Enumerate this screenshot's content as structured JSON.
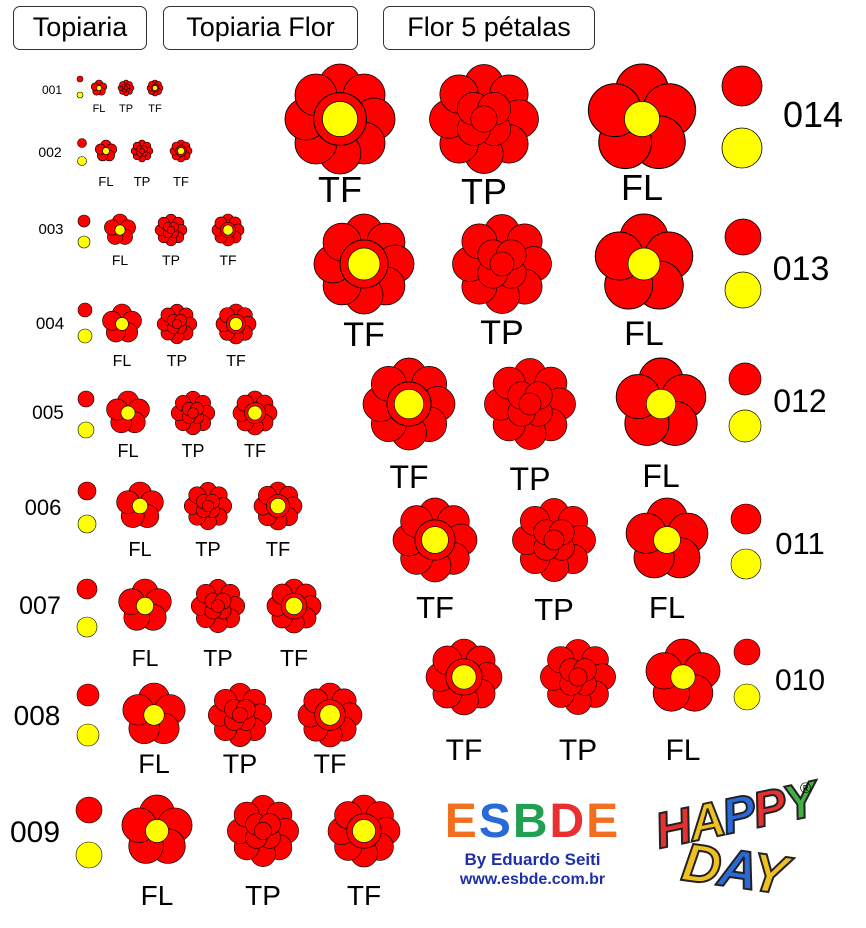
{
  "tabs": [
    "Topiaria",
    "Topiaria Flor",
    "Flor 5 pétalas"
  ],
  "size_ids": [
    "001",
    "002",
    "003",
    "004",
    "005",
    "006",
    "007",
    "008",
    "009",
    "010",
    "011",
    "012",
    "013",
    "014"
  ],
  "type_labels": {
    "tf": "TF",
    "tp": "TP",
    "fl": "FL"
  },
  "colors": {
    "petal": "#ff0000",
    "center": "#ffff00",
    "outline": "#000000"
  },
  "brand": {
    "name_letters": [
      "E",
      "S",
      "B",
      "D",
      "E"
    ],
    "name_colors": [
      "#f07020",
      "#2a6ad8",
      "#20a050",
      "#e83030",
      "#f07020"
    ],
    "byline": "By Eduardo Seiti",
    "url": "www.esbde.com.br"
  },
  "logo": {
    "happy_letters": [
      "H",
      "A",
      "P",
      "P",
      "Y"
    ],
    "happy_colors": [
      "#e83030",
      "#f0c020",
      "#2a6ad8",
      "#e83030",
      "#40b040"
    ],
    "day_letters": [
      "D",
      "A",
      "Y"
    ],
    "day_colors": [
      "#f0c020",
      "#2a6ad8",
      "#f0c020"
    ],
    "reg_mark": "®"
  }
}
